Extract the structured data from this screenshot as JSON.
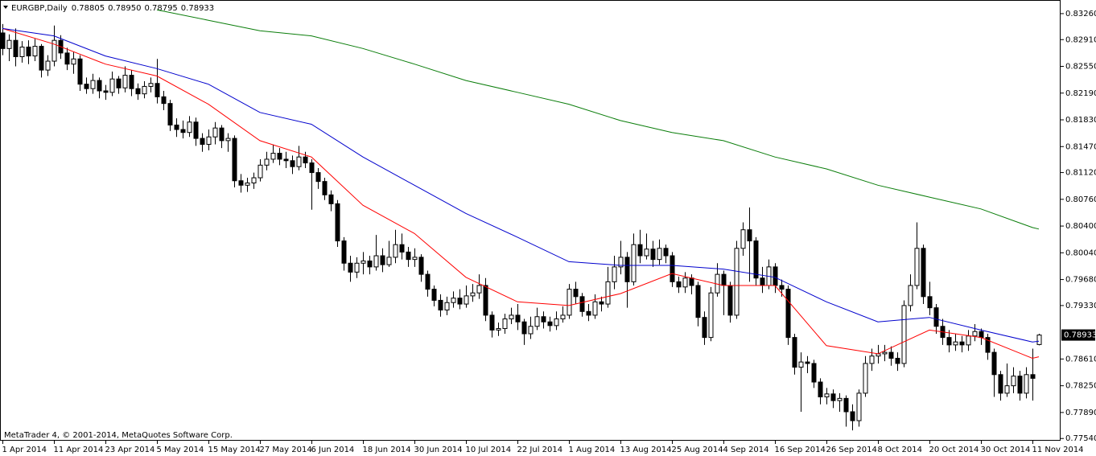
{
  "chart_data": {
    "type": "candlestick",
    "title": "EURGBP,Daily",
    "header_values": [
      "0.78805",
      "0.78950",
      "0.78795",
      "0.78933"
    ],
    "footer": "MetaTrader 4, © 2001-2014, MetaQuotes Software Corp.",
    "color": "#000000",
    "xlim": [
      -0.375,
      164.375
    ],
    "xticks": [
      {
        "value": 0,
        "label": "1 Apr 2014"
      },
      {
        "value": 8,
        "label": "11 Apr 2014"
      },
      {
        "value": 16,
        "label": "23 Apr 2014"
      },
      {
        "value": 24,
        "label": "5 May 2014"
      },
      {
        "value": 32,
        "label": "15 May 2014"
      },
      {
        "value": 40,
        "label": "27 May 2014"
      },
      {
        "value": 48,
        "label": "6 Jun 2014"
      },
      {
        "value": 56,
        "label": "18 Jun 2014"
      },
      {
        "value": 64,
        "label": "30 Jun 2014"
      },
      {
        "value": 72,
        "label": "10 Jul 2014"
      },
      {
        "value": 80,
        "label": "22 Jul 2014"
      },
      {
        "value": 88,
        "label": "1 Aug 2014"
      },
      {
        "value": 96,
        "label": "13 Aug 2014"
      },
      {
        "value": 104,
        "label": "25 Aug 2014"
      },
      {
        "value": 112,
        "label": "4 Sep 2014"
      },
      {
        "value": 120,
        "label": "16 Sep 2014"
      },
      {
        "value": 128,
        "label": "26 Sep 2014"
      },
      {
        "value": 136,
        "label": "8 Oct 2014"
      },
      {
        "value": 144,
        "label": "20 Oct 2014"
      },
      {
        "value": 152,
        "label": "30 Oct 2014"
      },
      {
        "value": 160,
        "label": "11 Nov 2014"
      }
    ],
    "ylim": [
      0.7751,
      0.834
    ],
    "yticks": [
      {
        "value": 0.8326,
        "label": "0.83260"
      },
      {
        "value": 0.8291,
        "label": "0.82910"
      },
      {
        "value": 0.8255,
        "label": "0.82550"
      },
      {
        "value": 0.8219,
        "label": "0.82190"
      },
      {
        "value": 0.8183,
        "label": "0.81830"
      },
      {
        "value": 0.8147,
        "label": "0.81470"
      },
      {
        "value": 0.8112,
        "label": "0.81120"
      },
      {
        "value": 0.8076,
        "label": "0.80760"
      },
      {
        "value": 0.804,
        "label": "0.80400"
      },
      {
        "value": 0.8004,
        "label": "0.80040"
      },
      {
        "value": 0.7968,
        "label": "0.79680"
      },
      {
        "value": 0.7933,
        "label": "0.79330"
      },
      {
        "value": 0.7861,
        "label": "0.78610"
      },
      {
        "value": 0.7825,
        "label": "0.78250"
      },
      {
        "value": 0.7789,
        "label": "0.77890"
      },
      {
        "value": 0.7754,
        "label": "0.77540"
      }
    ],
    "last_price": {
      "value": 0.78933,
      "label": "0.78933"
    },
    "open": [
      0.83,
      0.8279,
      0.829,
      0.8268,
      0.8281,
      0.8269,
      0.8282,
      0.825,
      0.8262,
      0.829,
      0.8273,
      0.8258,
      0.8265,
      0.8231,
      0.8225,
      0.8236,
      0.8222,
      0.822,
      0.8238,
      0.8226,
      0.8243,
      0.8225,
      0.8218,
      0.8228,
      0.8232,
      0.8214,
      0.8205,
      0.8176,
      0.817,
      0.8166,
      0.818,
      0.8158,
      0.815,
      0.816,
      0.8172,
      0.8155,
      0.8158,
      0.8101,
      0.8095,
      0.8098,
      0.8105,
      0.8122,
      0.813,
      0.8138,
      0.813,
      0.8128,
      0.812,
      0.8133,
      0.8125,
      0.8112,
      0.81,
      0.8082,
      0.807,
      0.802,
      0.799,
      0.7978,
      0.799,
      0.7993,
      0.7985,
      0.8,
      0.7988,
      0.7998,
      0.8015,
      0.8005,
      0.7995,
      0.7998,
      0.7975,
      0.7955,
      0.794,
      0.7927,
      0.7937,
      0.7943,
      0.7935,
      0.7946,
      0.795,
      0.796,
      0.792,
      0.79,
      0.7902,
      0.7915,
      0.792,
      0.7911,
      0.7895,
      0.7905,
      0.7918,
      0.7911,
      0.7906,
      0.7915,
      0.792,
      0.7955,
      0.7945,
      0.7925,
      0.792,
      0.7938,
      0.7935,
      0.7965,
      0.7985,
      0.7998,
      0.7965,
      0.8015,
      0.8,
      0.8009,
      0.7995,
      0.801,
      0.8,
      0.7965,
      0.7958,
      0.797,
      0.796,
      0.7917,
      0.789,
      0.795,
      0.7975,
      0.796,
      0.792,
      0.801,
      0.8035,
      0.802,
      0.797,
      0.796,
      0.7985,
      0.796,
      0.7955,
      0.789,
      0.785,
      0.7857,
      0.7855,
      0.783,
      0.781,
      0.7814,
      0.7805,
      0.7808,
      0.779,
      0.7778,
      0.7815,
      0.7855,
      0.7865,
      0.7868,
      0.787,
      0.7862,
      0.7855,
      0.7933,
      0.796,
      0.801,
      0.7945,
      0.793,
      0.7905,
      0.789,
      0.788,
      0.7884,
      0.788,
      0.7892,
      0.7898,
      0.789,
      0.787,
      0.784,
      0.7815,
      0.7825,
      0.7838,
      0.7815,
      0.784,
      0.78805
    ],
    "high": [
      0.8312,
      0.8298,
      0.8306,
      0.8289,
      0.829,
      0.8292,
      0.8285,
      0.827,
      0.831,
      0.8297,
      0.828,
      0.8275,
      0.827,
      0.824,
      0.8245,
      0.824,
      0.823,
      0.8248,
      0.8242,
      0.8255,
      0.825,
      0.8232,
      0.8235,
      0.824,
      0.8265,
      0.8222,
      0.821,
      0.8185,
      0.8182,
      0.8188,
      0.8186,
      0.8165,
      0.817,
      0.818,
      0.8176,
      0.8165,
      0.8162,
      0.811,
      0.8105,
      0.8112,
      0.813,
      0.814,
      0.815,
      0.8145,
      0.814,
      0.8135,
      0.8148,
      0.814,
      0.813,
      0.8118,
      0.8105,
      0.8088,
      0.8075,
      0.8025,
      0.8,
      0.7998,
      0.8005,
      0.8,
      0.8028,
      0.801,
      0.802,
      0.8035,
      0.803,
      0.8012,
      0.801,
      0.8002,
      0.798,
      0.796,
      0.7948,
      0.7945,
      0.7952,
      0.7955,
      0.796,
      0.7962,
      0.7975,
      0.797,
      0.7925,
      0.791,
      0.7922,
      0.793,
      0.7935,
      0.7915,
      0.7918,
      0.793,
      0.7925,
      0.7918,
      0.7925,
      0.7932,
      0.7962,
      0.7965,
      0.795,
      0.7935,
      0.7948,
      0.7945,
      0.7985,
      0.8,
      0.802,
      0.8005,
      0.803,
      0.8035,
      0.803,
      0.802,
      0.8022,
      0.8015,
      0.8005,
      0.7972,
      0.7978,
      0.7975,
      0.7965,
      0.7925,
      0.7958,
      0.799,
      0.798,
      0.7965,
      0.802,
      0.8045,
      0.8065,
      0.8025,
      0.7985,
      0.7995,
      0.799,
      0.7968,
      0.796,
      0.7895,
      0.787,
      0.7865,
      0.786,
      0.7835,
      0.7822,
      0.782,
      0.7815,
      0.7812,
      0.78,
      0.782,
      0.7865,
      0.7875,
      0.788,
      0.788,
      0.7878,
      0.787,
      0.794,
      0.7975,
      0.8045,
      0.8015,
      0.7965,
      0.7935,
      0.7915,
      0.79,
      0.7895,
      0.7892,
      0.79,
      0.7908,
      0.7902,
      0.7895,
      0.7875,
      0.7845,
      0.7855,
      0.785,
      0.7845,
      0.785,
      0.7875,
      0.7895
    ],
    "low": [
      0.827,
      0.8262,
      0.8255,
      0.826,
      0.8258,
      0.8262,
      0.824,
      0.8242,
      0.8255,
      0.8265,
      0.825,
      0.8245,
      0.8222,
      0.8218,
      0.8218,
      0.8212,
      0.821,
      0.8215,
      0.8218,
      0.822,
      0.8215,
      0.821,
      0.8212,
      0.822,
      0.8205,
      0.8196,
      0.8168,
      0.816,
      0.8158,
      0.816,
      0.8148,
      0.814,
      0.8142,
      0.815,
      0.8145,
      0.814,
      0.8092,
      0.8085,
      0.8086,
      0.809,
      0.81,
      0.8115,
      0.8125,
      0.8122,
      0.8118,
      0.811,
      0.8115,
      0.8118,
      0.8062,
      0.809,
      0.8075,
      0.806,
      0.8012,
      0.798,
      0.7965,
      0.797,
      0.7975,
      0.7975,
      0.798,
      0.7978,
      0.7985,
      0.799,
      0.7995,
      0.7985,
      0.7985,
      0.7965,
      0.7945,
      0.7932,
      0.7918,
      0.792,
      0.793,
      0.7928,
      0.793,
      0.7938,
      0.7942,
      0.7912,
      0.789,
      0.7892,
      0.7895,
      0.7908,
      0.79,
      0.788,
      0.7888,
      0.79,
      0.7902,
      0.7898,
      0.79,
      0.791,
      0.7915,
      0.7935,
      0.7918,
      0.7912,
      0.7915,
      0.7925,
      0.793,
      0.7955,
      0.7975,
      0.793,
      0.796,
      0.799,
      0.7995,
      0.7985,
      0.7988,
      0.799,
      0.7958,
      0.795,
      0.795,
      0.7948,
      0.7905,
      0.788,
      0.7885,
      0.7945,
      0.792,
      0.791,
      0.7915,
      0.8,
      0.7965,
      0.796,
      0.795,
      0.7955,
      0.795,
      0.7945,
      0.788,
      0.784,
      0.779,
      0.7842,
      0.7822,
      0.78,
      0.78,
      0.7795,
      0.779,
      0.777,
      0.7765,
      0.777,
      0.781,
      0.7845,
      0.7855,
      0.7858,
      0.7852,
      0.7845,
      0.785,
      0.7925,
      0.7955,
      0.7935,
      0.792,
      0.7895,
      0.788,
      0.787,
      0.7872,
      0.787,
      0.7872,
      0.7885,
      0.788,
      0.786,
      0.781,
      0.7805,
      0.781,
      0.7815,
      0.7805,
      0.7808,
      0.7805,
      0.78795
    ],
    "close": [
      0.8279,
      0.829,
      0.8268,
      0.8281,
      0.8269,
      0.8282,
      0.825,
      0.8262,
      0.829,
      0.8273,
      0.8258,
      0.8265,
      0.8231,
      0.8225,
      0.8236,
      0.8222,
      0.822,
      0.8238,
      0.8226,
      0.8243,
      0.8225,
      0.8218,
      0.8228,
      0.8232,
      0.8214,
      0.8205,
      0.8176,
      0.817,
      0.8166,
      0.818,
      0.8158,
      0.815,
      0.816,
      0.8172,
      0.8155,
      0.8158,
      0.8101,
      0.8095,
      0.8098,
      0.8105,
      0.8122,
      0.813,
      0.8138,
      0.813,
      0.8128,
      0.812,
      0.8133,
      0.8125,
      0.8112,
      0.81,
      0.8082,
      0.807,
      0.802,
      0.799,
      0.7978,
      0.799,
      0.7993,
      0.7985,
      0.8,
      0.7988,
      0.7998,
      0.8015,
      0.8005,
      0.7995,
      0.7998,
      0.7975,
      0.7955,
      0.794,
      0.7927,
      0.7937,
      0.7943,
      0.7935,
      0.7946,
      0.795,
      0.796,
      0.792,
      0.79,
      0.7902,
      0.7915,
      0.792,
      0.7911,
      0.7895,
      0.7905,
      0.7918,
      0.7911,
      0.7906,
      0.7915,
      0.792,
      0.7955,
      0.7945,
      0.7925,
      0.792,
      0.7938,
      0.7935,
      0.7965,
      0.7985,
      0.7998,
      0.7965,
      0.8015,
      0.8,
      0.8009,
      0.7995,
      0.801,
      0.8,
      0.7965,
      0.7958,
      0.797,
      0.796,
      0.7917,
      0.789,
      0.795,
      0.7975,
      0.796,
      0.792,
      0.801,
      0.8035,
      0.802,
      0.797,
      0.796,
      0.7985,
      0.796,
      0.7955,
      0.789,
      0.785,
      0.7857,
      0.7855,
      0.783,
      0.781,
      0.7814,
      0.7805,
      0.7808,
      0.779,
      0.7778,
      0.7815,
      0.7855,
      0.7865,
      0.7868,
      0.787,
      0.7862,
      0.7855,
      0.7933,
      0.796,
      0.801,
      0.7945,
      0.793,
      0.7905,
      0.789,
      0.788,
      0.7884,
      0.788,
      0.7892,
      0.7898,
      0.789,
      0.787,
      0.784,
      0.7815,
      0.7825,
      0.7838,
      0.7815,
      0.784,
      0.7835,
      0.78933
    ],
    "lines": [
      {
        "color": "#ff0000",
        "x": [
          0,
          8,
          16,
          24,
          32,
          40,
          48,
          56,
          64,
          72,
          80,
          88,
          96,
          104,
          112,
          120,
          128,
          136,
          144,
          152,
          160,
          161
        ],
        "values": [
          0.8306,
          0.8285,
          0.8258,
          0.8242,
          0.8204,
          0.8155,
          0.8133,
          0.8068,
          0.803,
          0.7971,
          0.7938,
          0.7933,
          0.7949,
          0.7976,
          0.796,
          0.796,
          0.7879,
          0.7868,
          0.79,
          0.789,
          0.7862,
          0.7864
        ]
      },
      {
        "color": "#0000cd",
        "x": [
          0,
          8,
          16,
          24,
          32,
          40,
          48,
          56,
          64,
          72,
          80,
          88,
          96,
          104,
          112,
          120,
          128,
          136,
          144,
          152,
          160,
          161
        ],
        "values": [
          0.8306,
          0.8296,
          0.8269,
          0.8252,
          0.8231,
          0.8193,
          0.8177,
          0.8133,
          0.8095,
          0.8057,
          0.8025,
          0.7992,
          0.7987,
          0.7987,
          0.7982,
          0.7971,
          0.7938,
          0.7911,
          0.7917,
          0.79,
          0.7884,
          0.7885
        ]
      },
      {
        "color": "#0a7d0a",
        "x": [
          24,
          32,
          40,
          48,
          56,
          64,
          72,
          80,
          88,
          96,
          104,
          112,
          120,
          128,
          136,
          144,
          152,
          160,
          161
        ],
        "values": [
          0.8331,
          0.8317,
          0.8303,
          0.8296,
          0.8279,
          0.8258,
          0.8236,
          0.822,
          0.8204,
          0.8182,
          0.8166,
          0.8155,
          0.8133,
          0.8117,
          0.8095,
          0.8079,
          0.8063,
          0.8038,
          0.8036
        ]
      }
    ]
  }
}
